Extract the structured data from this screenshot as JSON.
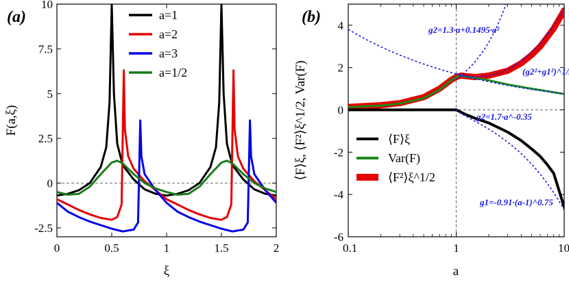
{
  "chart_data": [
    {
      "type": "line",
      "panel_label": "(a)",
      "xlabel": "ξ",
      "ylabel": "F(a,ξ)",
      "xlim": [
        0,
        2
      ],
      "ylim": [
        -3,
        10
      ],
      "xticks": [
        "0",
        "0.5",
        "1",
        "1.5",
        "2"
      ],
      "yticks": [
        "-2.5",
        "0",
        "2.5",
        "5",
        "7.5",
        "10"
      ],
      "legend_position": "top-center",
      "reference_line_y": 0,
      "series": [
        {
          "name": "a=1",
          "color": "#000000",
          "x": [
            0,
            0.1,
            0.2,
            0.3,
            0.4,
            0.45,
            0.48,
            0.5,
            0.52,
            0.55,
            0.6,
            0.7,
            0.8,
            0.9,
            1.0,
            1.1,
            1.2,
            1.3,
            1.4,
            1.45,
            1.48,
            1.5,
            1.52,
            1.55,
            1.6,
            1.7,
            1.8,
            1.9,
            2.0
          ],
          "y": [
            -0.7,
            -0.6,
            -0.4,
            0.0,
            0.9,
            2.0,
            4.5,
            10,
            5.0,
            2.2,
            1.0,
            0.2,
            -0.35,
            -0.6,
            -0.7,
            -0.6,
            -0.4,
            0.0,
            0.9,
            2.0,
            4.5,
            10,
            5.0,
            2.2,
            1.0,
            0.2,
            -0.35,
            -0.6,
            -0.7
          ]
        },
        {
          "name": "a=2",
          "color": "#e60000",
          "x": [
            0,
            0.1,
            0.2,
            0.3,
            0.4,
            0.5,
            0.55,
            0.59,
            0.61,
            0.62,
            0.65,
            0.7,
            0.8,
            0.9,
            1.0,
            1.1,
            1.2,
            1.3,
            1.4,
            1.5,
            1.55,
            1.59,
            1.61,
            1.62,
            1.65,
            1.7,
            1.8,
            1.9,
            2.0
          ],
          "y": [
            -0.9,
            -1.2,
            -1.5,
            -1.75,
            -1.95,
            -2.05,
            -1.9,
            -1.2,
            6.3,
            3.0,
            1.5,
            0.8,
            0.1,
            -0.4,
            -0.9,
            -1.2,
            -1.5,
            -1.75,
            -1.95,
            -2.05,
            -1.9,
            -1.2,
            6.3,
            3.0,
            1.5,
            0.8,
            0.1,
            -0.4,
            -0.9
          ]
        },
        {
          "name": "a=3",
          "color": "#0000e6",
          "x": [
            0,
            0.1,
            0.2,
            0.3,
            0.4,
            0.5,
            0.6,
            0.7,
            0.74,
            0.76,
            0.77,
            0.8,
            0.9,
            1.0,
            1.1,
            1.2,
            1.3,
            1.4,
            1.5,
            1.6,
            1.7,
            1.74,
            1.76,
            1.77,
            1.8,
            1.9,
            2.0
          ],
          "y": [
            -1.1,
            -1.6,
            -1.9,
            -2.15,
            -2.35,
            -2.55,
            -2.7,
            -2.6,
            -2.2,
            3.5,
            1.5,
            0.5,
            -0.4,
            -1.1,
            -1.6,
            -1.9,
            -2.15,
            -2.35,
            -2.55,
            -2.7,
            -2.6,
            -2.2,
            3.5,
            1.5,
            0.5,
            -0.4,
            -1.1
          ]
        },
        {
          "name": "a=1/2",
          "color": "#1a7a1a",
          "x": [
            0,
            0.1,
            0.2,
            0.3,
            0.4,
            0.5,
            0.55,
            0.6,
            0.7,
            0.8,
            0.9,
            1.0,
            1.1,
            1.2,
            1.3,
            1.4,
            1.5,
            1.55,
            1.6,
            1.7,
            1.8,
            1.9,
            2.0
          ],
          "y": [
            -0.5,
            -0.65,
            -0.6,
            -0.2,
            0.5,
            1.15,
            1.25,
            1.1,
            0.5,
            0.0,
            -0.3,
            -0.5,
            -0.65,
            -0.6,
            -0.2,
            0.5,
            1.15,
            1.25,
            1.1,
            0.5,
            0.0,
            -0.3,
            -0.5
          ]
        }
      ]
    },
    {
      "type": "line",
      "panel_label": "(b)",
      "xlabel": "a",
      "ylabel": "⟨F⟩ξ, ⟨F²⟩ξ^1/2, Var(F)",
      "xscale": "log",
      "xlim": [
        0.1,
        10
      ],
      "ylim": [
        -6,
        5
      ],
      "xticks": [
        "0.1",
        "1",
        "10"
      ],
      "yticks": [
        "-6",
        "-4",
        "-2",
        "0",
        "2",
        "4"
      ],
      "legend_position": "bottom-left",
      "reference_line_y": 0,
      "reference_line_x": 1,
      "series": [
        {
          "name": "⟨F⟩ξ",
          "color": "#000000",
          "x": [
            0.1,
            0.3,
            0.6,
            1.0,
            1.2,
            1.5,
            2,
            3,
            4,
            5,
            6,
            7,
            8,
            10
          ],
          "y": [
            0,
            0,
            0,
            0,
            -0.2,
            -0.4,
            -0.62,
            -1.05,
            -1.45,
            -1.85,
            -2.2,
            -2.6,
            -3.0,
            -4.6
          ]
        },
        {
          "name": "Var(F)",
          "color": "#1a8a1a",
          "x": [
            0.1,
            0.2,
            0.3,
            0.5,
            0.7,
            0.9,
            1.0,
            1.1,
            1.2,
            1.5,
            2,
            3,
            5,
            7,
            10
          ],
          "y": [
            0.13,
            0.2,
            0.3,
            0.55,
            0.95,
            1.4,
            1.55,
            1.62,
            1.58,
            1.5,
            1.4,
            1.2,
            1.0,
            0.88,
            0.75
          ]
        },
        {
          "name": "⟨F²⟩ξ^1/2",
          "color": "#e60000",
          "x": [
            0.1,
            0.2,
            0.3,
            0.5,
            0.7,
            0.9,
            1.0,
            1.1,
            1.2,
            1.5,
            2,
            3,
            4,
            5,
            6,
            7,
            8,
            10
          ],
          "y": [
            0.14,
            0.22,
            0.32,
            0.6,
            1.0,
            1.42,
            1.55,
            1.62,
            1.6,
            1.55,
            1.62,
            1.85,
            2.2,
            2.6,
            3.0,
            3.45,
            3.85,
            4.7
          ]
        }
      ],
      "fits": [
        {
          "label": "g2=1.3·a+0.1495·a²",
          "a_range": [
            1,
            10
          ]
        },
        {
          "label": "g2=1.7·a^-0.35",
          "a_range": [
            0.1,
            10
          ]
        },
        {
          "label": "(g2²+g1²)^1/2",
          "a_range": [
            1,
            10
          ]
        },
        {
          "label": "g1=-0.91·(a-1)^0.75",
          "a_range": [
            1,
            10
          ]
        }
      ]
    }
  ]
}
